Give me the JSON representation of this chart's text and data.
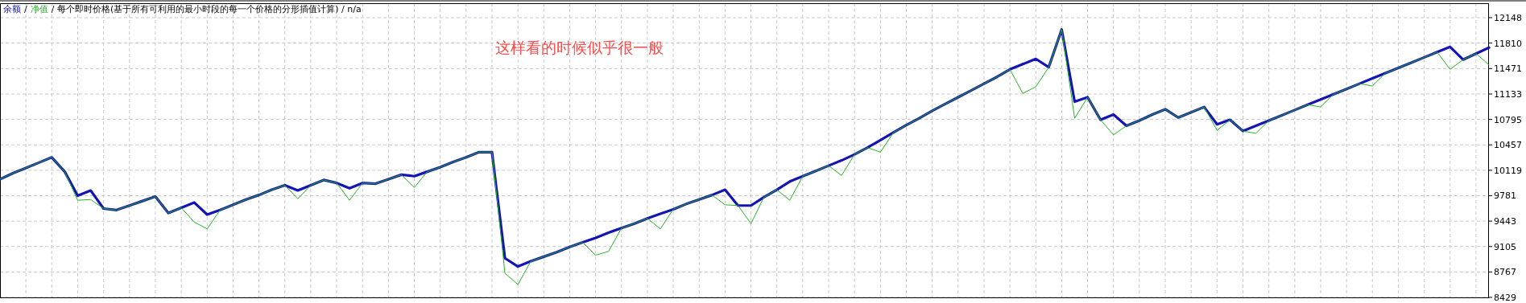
{
  "chart_data": {
    "type": "line",
    "title": "/ 每个即时价格(基于所有可利用的最小时段的每一个价格的分形插值计算) / n/a",
    "annotations": [
      "这样看的时候似乎很一般",
      "/"
    ],
    "categories": [
      null,
      null,
      null,
      null,
      null,
      null,
      null,
      null,
      null,
      null,
      null,
      null,
      null,
      null,
      null,
      null,
      null,
      null,
      null,
      null,
      null,
      null,
      null,
      null,
      null,
      null,
      null,
      null,
      null,
      null,
      null,
      null,
      null,
      null,
      null,
      null,
      null,
      null,
      null,
      null,
      null,
      null,
      null,
      null,
      null,
      null,
      null,
      null,
      null,
      null,
      null,
      null,
      null,
      null,
      null,
      null,
      null,
      null,
      null,
      null,
      null,
      null,
      null,
      null,
      null,
      null,
      null,
      null,
      null,
      null,
      null,
      null,
      null,
      null,
      null,
      null,
      null,
      null,
      null,
      null,
      null,
      null,
      null,
      null,
      null,
      null,
      null,
      null,
      null,
      null,
      null,
      null,
      null,
      null,
      null,
      null,
      null,
      null,
      null,
      null,
      null,
      null,
      null,
      null,
      null,
      null,
      null,
      null,
      null,
      null,
      null,
      null,
      null,
      null,
      null,
      null
    ],
    "series": [
      {
        "name": "余额",
        "color": "#1414b4",
        "values": [
          10000,
          10080,
          10150,
          10220,
          10290,
          10100,
          9780,
          9850,
          9610,
          9590,
          9650,
          9710,
          9770,
          9550,
          9620,
          9690,
          9530,
          9590,
          9660,
          9730,
          9790,
          9860,
          9920,
          9850,
          9920,
          9990,
          9950,
          9880,
          9950,
          9940,
          10000,
          10060,
          10040,
          10100,
          10160,
          10230,
          10290,
          10360,
          10360,
          8950,
          8840,
          8910,
          8970,
          9030,
          9100,
          9160,
          9220,
          9290,
          9350,
          9410,
          9480,
          9540,
          9600,
          9670,
          9730,
          9790,
          9860,
          9650,
          9650,
          9760,
          9860,
          9970,
          10040,
          10110,
          10180,
          10250,
          10330,
          10420,
          10520,
          10620,
          10720,
          10810,
          10910,
          11000,
          11090,
          11180,
          11270,
          11360,
          11460,
          11530,
          11600,
          11490,
          11990,
          11030,
          11090,
          10790,
          10860,
          10710,
          10780,
          10860,
          10930,
          10820,
          10890,
          10960,
          10730,
          10790,
          10640,
          10710,
          10780,
          10850,
          10920,
          10990,
          11060,
          11130,
          11200,
          11270,
          11340,
          11410,
          11480,
          11550,
          11620,
          11690,
          11760,
          11590,
          11670,
          11750
        ]
      },
      {
        "name": "净值",
        "color": "#22b422",
        "values": [
          10000,
          10080,
          10150,
          10220,
          10290,
          10100,
          9720,
          9730,
          9610,
          9590,
          9650,
          9710,
          9770,
          9550,
          9620,
          9430,
          9340,
          9590,
          9660,
          9730,
          9790,
          9860,
          9920,
          9740,
          9920,
          9990,
          9950,
          9720,
          9950,
          9940,
          10000,
          10060,
          9890,
          10100,
          10160,
          10230,
          10290,
          10360,
          10360,
          8750,
          8600,
          8910,
          8970,
          9030,
          9100,
          9160,
          8990,
          9040,
          9350,
          9410,
          9480,
          9340,
          9600,
          9670,
          9730,
          9790,
          9660,
          9650,
          9410,
          9760,
          9860,
          9720,
          10040,
          10110,
          10180,
          10050,
          10330,
          10420,
          10360,
          10620,
          10720,
          10810,
          10910,
          11000,
          11090,
          11180,
          11270,
          11360,
          11460,
          11140,
          11230,
          11490,
          11990,
          10810,
          11090,
          10790,
          10590,
          10710,
          10780,
          10860,
          10930,
          10820,
          10890,
          10960,
          10650,
          10790,
          10640,
          10610,
          10780,
          10850,
          10920,
          10990,
          10960,
          11130,
          11200,
          11270,
          11240,
          11410,
          11480,
          11550,
          11620,
          11690,
          11460,
          11590,
          11670,
          11520
        ]
      }
    ],
    "ylim": [
      8429,
      12340
    ],
    "yticks": [
      8429,
      8767,
      9105,
      9443,
      9781,
      10119,
      10457,
      10795,
      11133,
      11471,
      11810,
      12148
    ],
    "grid": true,
    "legend": "top left"
  }
}
